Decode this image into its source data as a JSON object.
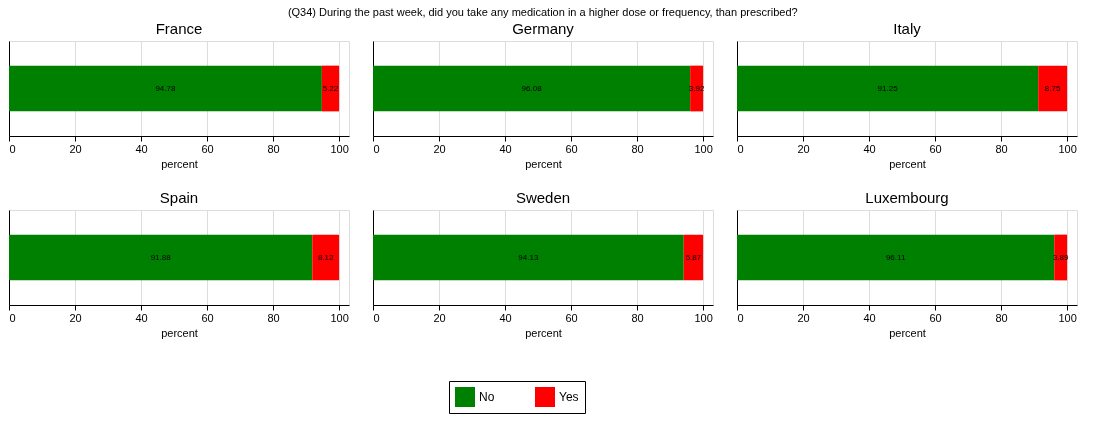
{
  "chart_data": [
    {
      "type": "bar",
      "orientation": "horizontal",
      "stacked": true,
      "title": "France",
      "annotations": [
        "(Q34) During the past week, did you take any medication in a higher dose or frequency, than prescribed?"
      ],
      "xlabel": "percent",
      "categories": [
        null
      ],
      "series": [
        {
          "name": "No",
          "color": "#008000",
          "values": [
            94.78
          ]
        },
        {
          "name": "Yes",
          "color": "#ff0000",
          "values": [
            5.22
          ]
        }
      ],
      "data_labels": true,
      "xlim": [
        0,
        103
      ],
      "xticks": [
        0,
        20,
        40,
        60,
        80,
        100
      ],
      "grid": "x",
      "tick_labels": "x",
      "legend": "bottom"
    },
    {
      "type": "bar",
      "orientation": "horizontal",
      "stacked": true,
      "title": "Germany",
      "xlabel": "percent",
      "categories": [
        null
      ],
      "series": [
        {
          "name": "No",
          "color": "#008000",
          "values": [
            96.08
          ]
        },
        {
          "name": "Yes",
          "color": "#ff0000",
          "values": [
            3.92
          ]
        }
      ],
      "data_labels": true,
      "xlim": [
        0,
        103
      ],
      "xticks": [
        0,
        20,
        40,
        60,
        80,
        100
      ],
      "grid": "x",
      "tick_labels": "x",
      "legend": "bottom"
    },
    {
      "type": "bar",
      "orientation": "horizontal",
      "stacked": true,
      "title": "Italy",
      "xlabel": "percent",
      "categories": [
        null
      ],
      "series": [
        {
          "name": "No",
          "color": "#008000",
          "values": [
            91.25
          ]
        },
        {
          "name": "Yes",
          "color": "#ff0000",
          "values": [
            8.75
          ]
        }
      ],
      "data_labels": true,
      "xlim": [
        0,
        103
      ],
      "xticks": [
        0,
        20,
        40,
        60,
        80,
        100
      ],
      "grid": "x",
      "tick_labels": "x",
      "legend": "bottom"
    },
    {
      "type": "bar",
      "orientation": "horizontal",
      "stacked": true,
      "title": "Spain",
      "xlabel": "percent",
      "categories": [
        null
      ],
      "series": [
        {
          "name": "No",
          "color": "#008000",
          "values": [
            91.88
          ]
        },
        {
          "name": "Yes",
          "color": "#ff0000",
          "values": [
            8.12
          ]
        }
      ],
      "data_labels": true,
      "xlim": [
        0,
        103
      ],
      "xticks": [
        0,
        20,
        40,
        60,
        80,
        100
      ],
      "grid": "x",
      "tick_labels": "x",
      "legend": "bottom"
    },
    {
      "type": "bar",
      "orientation": "horizontal",
      "stacked": true,
      "title": "Sweden",
      "xlabel": "percent",
      "categories": [
        null
      ],
      "series": [
        {
          "name": "No",
          "color": "#008000",
          "values": [
            94.13
          ]
        },
        {
          "name": "Yes",
          "color": "#ff0000",
          "values": [
            5.87
          ]
        }
      ],
      "data_labels": true,
      "xlim": [
        0,
        103
      ],
      "xticks": [
        0,
        20,
        40,
        60,
        80,
        100
      ],
      "grid": "x",
      "tick_labels": "x",
      "legend": "bottom"
    },
    {
      "type": "bar",
      "orientation": "horizontal",
      "stacked": true,
      "title": "Luxembourg",
      "xlabel": "percent",
      "categories": [
        null
      ],
      "series": [
        {
          "name": "No",
          "color": "#008000",
          "values": [
            96.11
          ]
        },
        {
          "name": "Yes",
          "color": "#ff0000",
          "values": [
            3.89
          ]
        }
      ],
      "data_labels": true,
      "xlim": [
        0,
        103
      ],
      "xticks": [
        0,
        20,
        40,
        60,
        80,
        100
      ],
      "grid": "x",
      "tick_labels": "x",
      "legend": "bottom"
    }
  ]
}
